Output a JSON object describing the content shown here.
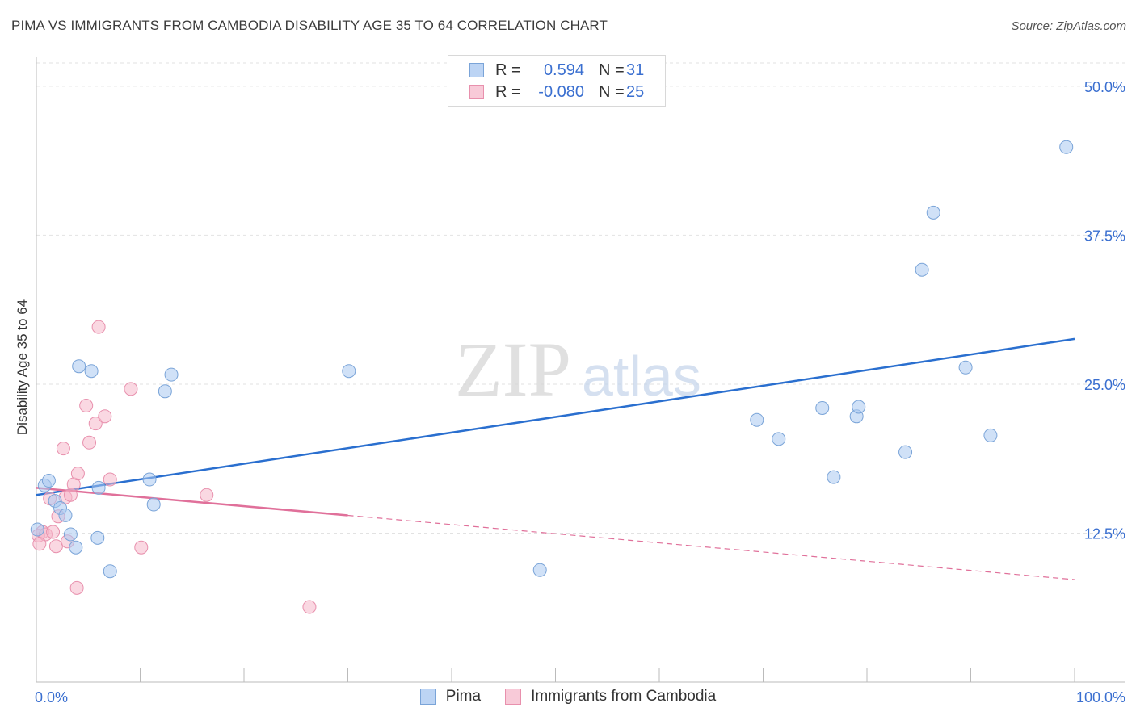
{
  "title": "PIMA VS IMMIGRANTS FROM CAMBODIA DISABILITY AGE 35 TO 64 CORRELATION CHART",
  "source": "Source: ZipAtlas.com",
  "watermark": {
    "zip": "ZIP",
    "atlas": "atlas"
  },
  "colors": {
    "pima_fill": "#aac8f0",
    "pima_stroke": "#7aa4d8",
    "pima_line": "#2a6fcf",
    "cambodia_fill": "#f5b8cb",
    "cambodia_stroke": "#e890ad",
    "cambodia_line": "#e0709a",
    "tick_label": "#3a6fd0",
    "grid": "#e2e2e2"
  },
  "legend": {
    "rows": [
      {
        "r_label": "R =",
        "r_value": "0.594",
        "n_label": "N =",
        "n_value": "31"
      },
      {
        "r_label": "R =",
        "r_value": "-0.080",
        "n_label": "N =",
        "n_value": "25"
      }
    ]
  },
  "chart_data": {
    "type": "scatter",
    "title": "PIMA VS IMMIGRANTS FROM CAMBODIA DISABILITY AGE 35 TO 64 CORRELATION CHART",
    "xlabel": "",
    "ylabel": "Disability Age 35 to 64",
    "xlim": [
      0,
      100
    ],
    "ylim": [
      0,
      52.5
    ],
    "x_tick_labels": [
      "0.0%",
      "100.0%"
    ],
    "y_ticks": [
      12.5,
      25.0,
      37.5,
      50.0
    ],
    "y_tick_labels": [
      "12.5%",
      "25.0%",
      "37.5%",
      "50.0%"
    ],
    "grid": true,
    "legend_position": "bottom",
    "series": [
      {
        "name": "Pima",
        "points": [
          [
            0.1,
            12.8
          ],
          [
            0.8,
            16.5
          ],
          [
            1.2,
            16.9
          ],
          [
            1.8,
            15.2
          ],
          [
            2.3,
            14.6
          ],
          [
            2.8,
            14.0
          ],
          [
            3.3,
            12.4
          ],
          [
            3.8,
            11.3
          ],
          [
            4.1,
            26.5
          ],
          [
            5.3,
            26.1
          ],
          [
            5.9,
            12.1
          ],
          [
            6.0,
            16.3
          ],
          [
            7.1,
            9.3
          ],
          [
            10.9,
            17.0
          ],
          [
            11.3,
            14.9
          ],
          [
            12.4,
            24.4
          ],
          [
            13.0,
            25.8
          ],
          [
            30.1,
            26.1
          ],
          [
            48.5,
            9.4
          ],
          [
            69.4,
            22.0
          ],
          [
            71.5,
            20.4
          ],
          [
            75.7,
            23.0
          ],
          [
            76.8,
            17.2
          ],
          [
            79.0,
            22.3
          ],
          [
            79.2,
            23.1
          ],
          [
            83.7,
            19.3
          ],
          [
            85.3,
            34.6
          ],
          [
            86.4,
            39.4
          ],
          [
            89.5,
            26.4
          ],
          [
            91.9,
            20.7
          ],
          [
            99.2,
            44.9
          ]
        ],
        "trend": {
          "x": [
            0,
            100
          ],
          "y": [
            15.7,
            28.8
          ]
        }
      },
      {
        "name": "Immigrants from Cambodia",
        "points": [
          [
            0.2,
            12.3
          ],
          [
            0.6,
            12.6
          ],
          [
            0.9,
            12.4
          ],
          [
            1.3,
            15.4
          ],
          [
            1.6,
            12.6
          ],
          [
            1.9,
            11.4
          ],
          [
            2.1,
            13.9
          ],
          [
            2.6,
            19.6
          ],
          [
            2.8,
            15.5
          ],
          [
            3.0,
            11.8
          ],
          [
            3.3,
            15.7
          ],
          [
            3.6,
            16.6
          ],
          [
            3.9,
            7.9
          ],
          [
            4.0,
            17.5
          ],
          [
            4.8,
            23.2
          ],
          [
            5.1,
            20.1
          ],
          [
            5.7,
            21.7
          ],
          [
            6.0,
            29.8
          ],
          [
            6.6,
            22.3
          ],
          [
            7.1,
            17.0
          ],
          [
            9.1,
            24.6
          ],
          [
            10.1,
            11.3
          ],
          [
            16.4,
            15.7
          ],
          [
            26.3,
            6.3
          ],
          [
            0.3,
            11.6
          ]
        ],
        "trend": {
          "x": [
            0,
            100
          ],
          "y": [
            16.3,
            8.6
          ],
          "solid_until_x": 30
        }
      }
    ]
  }
}
